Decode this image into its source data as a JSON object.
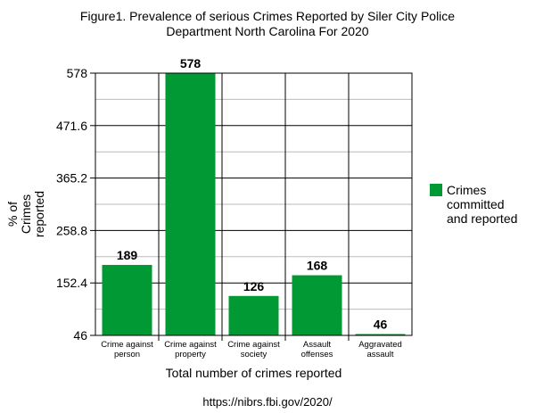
{
  "chart_data": {
    "type": "bar",
    "title": "Figure1. Prevalence of serious Crimes Reported by Siler City Police",
    "subtitle": "Department North Carolina For 2020",
    "xlabel": "Total number of crimes reported",
    "ylabel": "% of Crimes reported",
    "ylabel_lines": [
      "% of",
      "Crimes",
      "reported"
    ],
    "categories": [
      "Crime against person",
      "Crime against property",
      "Crime against society",
      "Assault offenses",
      "Aggravated assault"
    ],
    "category_lines": [
      [
        "Crime against",
        "person"
      ],
      [
        "Crime against",
        "property"
      ],
      [
        "Crime against",
        "society"
      ],
      [
        "Assault",
        "offenses"
      ],
      [
        "Aggravated",
        "assault"
      ]
    ],
    "series": [
      {
        "name": "Crimes committed and reported",
        "values": [
          189,
          578,
          126,
          168,
          46
        ],
        "color": "#009933"
      }
    ],
    "ylim": [
      46,
      578
    ],
    "yticks": [
      46,
      152.4,
      258.8,
      365.2,
      471.6,
      578
    ],
    "ytick_labels": [
      "46",
      "152.4",
      "258.8",
      "365.2",
      "471.6",
      "578"
    ],
    "data_labels": [
      "189",
      "578",
      "126",
      "168",
      "46"
    ],
    "grid": true,
    "legend_position": "right",
    "source": "https://nibrs.fbi.gov/2020/"
  }
}
